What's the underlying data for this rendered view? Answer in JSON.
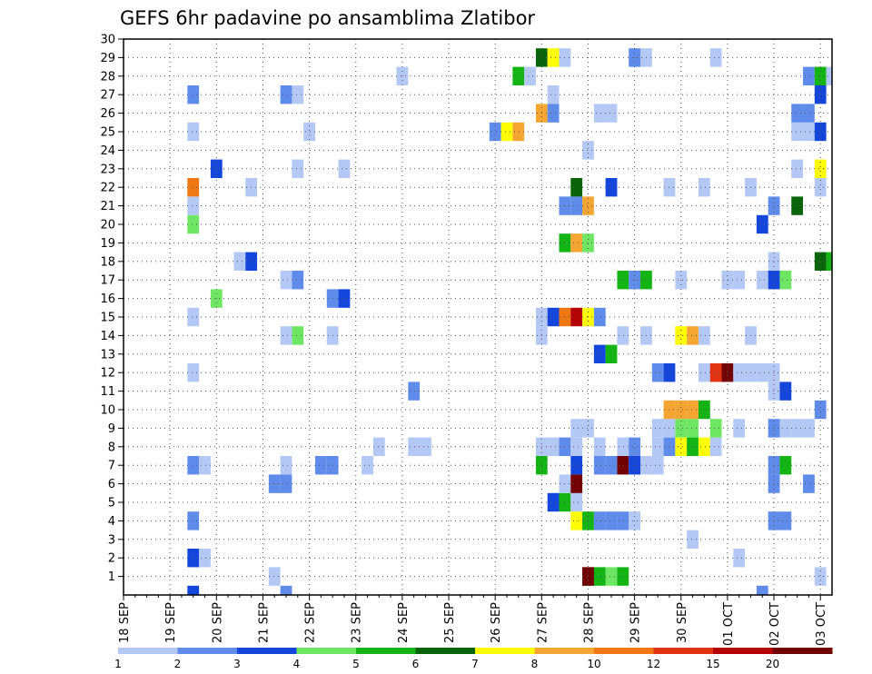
{
  "chart_data": {
    "type": "heatmap",
    "title": "GEFS 6hr padavine po ansamblima Zlatibor",
    "x_tick_labels": [
      "18 SEP",
      "19 SEP",
      "20 SEP",
      "21 SEP",
      "22 SEP",
      "23 SEP",
      "24 SEP",
      "25 SEP",
      "26 SEP",
      "27 SEP",
      "28 SEP",
      "29 SEP",
      "30 SEP",
      "01 OCT",
      "02 OCT",
      "03 OCT"
    ],
    "x_range_days": [
      0,
      15
    ],
    "x_step_hours": 6,
    "y_tick_labels": [
      1,
      2,
      3,
      4,
      5,
      6,
      7,
      8,
      9,
      10,
      11,
      12,
      13,
      14,
      15,
      16,
      17,
      18,
      19,
      20,
      21,
      22,
      23,
      24,
      25,
      26,
      27,
      28,
      29,
      30
    ],
    "y_range": [
      0,
      30
    ],
    "grid": true,
    "legend_position": "bottom",
    "legend": {
      "labels": [
        "1",
        "2",
        "3",
        "4",
        "5",
        "6",
        "7",
        "8",
        "10",
        "12",
        "15",
        "20"
      ],
      "colors": [
        "#b4c8f5",
        "#5f8ceb",
        "#1446dc",
        "#6ee664",
        "#14b414",
        "#0a640a",
        "#ffff00",
        "#f5a532",
        "#f07814",
        "#e13214",
        "#b40000",
        "#730000"
      ]
    },
    "cells": [
      [
        1.5,
        0,
        2
      ],
      [
        3.5,
        0,
        1
      ],
      [
        13.75,
        0,
        1
      ],
      [
        10.5,
        1,
        3
      ],
      [
        10.25,
        1,
        4
      ],
      [
        10.75,
        1,
        4
      ],
      [
        10.0,
        1,
        5
      ],
      [
        10.0,
        1,
        11
      ],
      [
        3.25,
        1,
        0
      ],
      [
        15.0,
        1,
        0
      ],
      [
        1.5,
        2,
        2
      ],
      [
        1.75,
        2,
        0
      ],
      [
        13.25,
        2,
        0
      ],
      [
        12.25,
        3,
        0
      ],
      [
        1.5,
        4,
        1
      ],
      [
        9.75,
        4,
        6
      ],
      [
        10.0,
        4,
        4
      ],
      [
        10.25,
        4,
        1
      ],
      [
        10.5,
        4,
        1
      ],
      [
        10.75,
        4,
        1
      ],
      [
        11.0,
        4,
        0
      ],
      [
        14.0,
        4,
        1
      ],
      [
        14.25,
        4,
        1
      ],
      [
        9.25,
        5,
        2
      ],
      [
        9.5,
        5,
        4
      ],
      [
        9.75,
        5,
        0
      ],
      [
        9.5,
        6,
        0
      ],
      [
        9.75,
        6,
        11
      ],
      [
        3.25,
        6,
        1
      ],
      [
        3.5,
        6,
        1
      ],
      [
        14.0,
        6,
        1
      ],
      [
        14.75,
        6,
        1
      ],
      [
        1.5,
        7,
        1
      ],
      [
        1.75,
        7,
        0
      ],
      [
        3.5,
        7,
        0
      ],
      [
        4.25,
        7,
        1
      ],
      [
        4.5,
        7,
        1
      ],
      [
        5.25,
        7,
        0
      ],
      [
        9.0,
        7,
        4
      ],
      [
        9.75,
        7,
        2
      ],
      [
        10.25,
        7,
        1
      ],
      [
        10.5,
        7,
        1
      ],
      [
        10.75,
        7,
        11
      ],
      [
        11.0,
        7,
        2
      ],
      [
        11.25,
        7,
        0
      ],
      [
        11.5,
        7,
        0
      ],
      [
        14.0,
        7,
        1
      ],
      [
        14.25,
        7,
        4
      ],
      [
        5.5,
        8,
        0
      ],
      [
        6.25,
        8,
        0
      ],
      [
        6.5,
        8,
        0
      ],
      [
        9.0,
        8,
        0
      ],
      [
        9.25,
        8,
        0
      ],
      [
        9.5,
        8,
        1
      ],
      [
        9.75,
        8,
        0
      ],
      [
        10.25,
        8,
        0
      ],
      [
        10.75,
        8,
        0
      ],
      [
        11.0,
        8,
        1
      ],
      [
        11.5,
        8,
        0
      ],
      [
        11.75,
        8,
        1
      ],
      [
        12.0,
        8,
        6
      ],
      [
        12.25,
        8,
        4
      ],
      [
        12.5,
        8,
        6
      ],
      [
        12.75,
        8,
        0
      ],
      [
        9.75,
        9,
        0
      ],
      [
        10.0,
        9,
        0
      ],
      [
        11.5,
        9,
        0
      ],
      [
        11.75,
        9,
        0
      ],
      [
        12.0,
        9,
        3
      ],
      [
        12.25,
        9,
        3
      ],
      [
        12.75,
        9,
        3
      ],
      [
        13.25,
        9,
        0
      ],
      [
        14.0,
        9,
        1
      ],
      [
        14.25,
        9,
        0
      ],
      [
        14.5,
        9,
        0
      ],
      [
        14.75,
        9,
        0
      ],
      [
        11.75,
        10,
        7
      ],
      [
        12.0,
        10,
        7
      ],
      [
        12.25,
        10,
        7
      ],
      [
        12.5,
        10,
        4
      ],
      [
        15.0,
        10,
        1
      ],
      [
        6.25,
        11,
        1
      ],
      [
        14.0,
        11,
        0
      ],
      [
        14.25,
        11,
        2
      ],
      [
        1.5,
        12,
        0
      ],
      [
        11.5,
        12,
        1
      ],
      [
        11.75,
        12,
        2
      ],
      [
        12.5,
        12,
        0
      ],
      [
        12.75,
        12,
        9
      ],
      [
        13.0,
        12,
        11
      ],
      [
        13.25,
        12,
        0
      ],
      [
        13.5,
        12,
        0
      ],
      [
        13.75,
        12,
        0
      ],
      [
        14.0,
        12,
        0
      ],
      [
        10.25,
        13,
        2
      ],
      [
        10.5,
        13,
        4
      ],
      [
        3.5,
        14,
        0
      ],
      [
        3.75,
        14,
        3
      ],
      [
        4.5,
        14,
        0
      ],
      [
        9.0,
        14,
        0
      ],
      [
        10.75,
        14,
        0
      ],
      [
        11.25,
        14,
        0
      ],
      [
        12.0,
        14,
        6
      ],
      [
        12.25,
        14,
        7
      ],
      [
        12.5,
        14,
        0
      ],
      [
        13.5,
        14,
        0
      ],
      [
        1.5,
        15,
        0
      ],
      [
        9.0,
        15,
        0
      ],
      [
        9.25,
        15,
        2
      ],
      [
        9.5,
        15,
        8
      ],
      [
        9.75,
        15,
        10
      ],
      [
        10.0,
        15,
        6
      ],
      [
        10.25,
        15,
        1
      ],
      [
        2.0,
        16,
        3
      ],
      [
        4.5,
        16,
        1
      ],
      [
        4.75,
        16,
        2
      ],
      [
        3.5,
        17,
        0
      ],
      [
        3.75,
        17,
        1
      ],
      [
        10.75,
        17,
        4
      ],
      [
        11.0,
        17,
        1
      ],
      [
        11.25,
        17,
        4
      ],
      [
        12.0,
        17,
        0
      ],
      [
        13.0,
        17,
        0
      ],
      [
        13.25,
        17,
        0
      ],
      [
        13.75,
        17,
        0
      ],
      [
        14.0,
        17,
        2
      ],
      [
        14.25,
        17,
        3
      ],
      [
        2.5,
        18,
        0
      ],
      [
        2.75,
        18,
        2
      ],
      [
        14.0,
        18,
        0
      ],
      [
        15.0,
        18,
        5
      ],
      [
        15.25,
        18,
        4
      ],
      [
        9.5,
        19,
        4
      ],
      [
        9.75,
        19,
        7
      ],
      [
        10.0,
        19,
        3
      ],
      [
        1.5,
        20,
        3
      ],
      [
        13.75,
        20,
        2
      ],
      [
        9.5,
        21,
        1
      ],
      [
        9.75,
        21,
        1
      ],
      [
        10.0,
        21,
        7
      ],
      [
        1.5,
        21,
        0
      ],
      [
        14.0,
        21,
        1
      ],
      [
        14.5,
        21,
        5
      ],
      [
        1.5,
        22,
        8
      ],
      [
        2.75,
        22,
        0
      ],
      [
        9.75,
        22,
        5
      ],
      [
        10.5,
        22,
        2
      ],
      [
        11.75,
        22,
        0
      ],
      [
        12.5,
        22,
        0
      ],
      [
        13.5,
        22,
        0
      ],
      [
        15.0,
        22,
        0
      ],
      [
        2.0,
        23,
        2
      ],
      [
        3.75,
        23,
        0
      ],
      [
        4.75,
        23,
        0
      ],
      [
        14.5,
        23,
        0
      ],
      [
        15.0,
        23,
        6
      ],
      [
        10.0,
        24,
        0
      ],
      [
        1.5,
        25,
        0
      ],
      [
        4.0,
        25,
        0
      ],
      [
        8.0,
        25,
        1
      ],
      [
        8.25,
        25,
        6
      ],
      [
        8.5,
        25,
        7
      ],
      [
        14.5,
        25,
        0
      ],
      [
        14.75,
        25,
        0
      ],
      [
        15.0,
        25,
        2
      ],
      [
        9.0,
        26,
        7
      ],
      [
        9.25,
        26,
        1
      ],
      [
        10.25,
        26,
        0
      ],
      [
        10.5,
        26,
        0
      ],
      [
        14.5,
        26,
        1
      ],
      [
        14.75,
        26,
        1
      ],
      [
        1.5,
        27,
        1
      ],
      [
        3.5,
        27,
        1
      ],
      [
        3.75,
        27,
        0
      ],
      [
        9.25,
        27,
        0
      ],
      [
        15.0,
        27,
        2
      ],
      [
        6.0,
        28,
        0
      ],
      [
        8.5,
        28,
        4
      ],
      [
        8.75,
        28,
        0
      ],
      [
        14.75,
        28,
        1
      ],
      [
        15.0,
        28,
        4
      ],
      [
        15.25,
        28,
        0
      ],
      [
        9.0,
        29,
        5
      ],
      [
        9.25,
        29,
        6
      ],
      [
        9.5,
        29,
        0
      ],
      [
        11.0,
        29,
        1
      ],
      [
        11.25,
        29,
        0
      ],
      [
        12.75,
        29,
        0
      ]
    ]
  }
}
